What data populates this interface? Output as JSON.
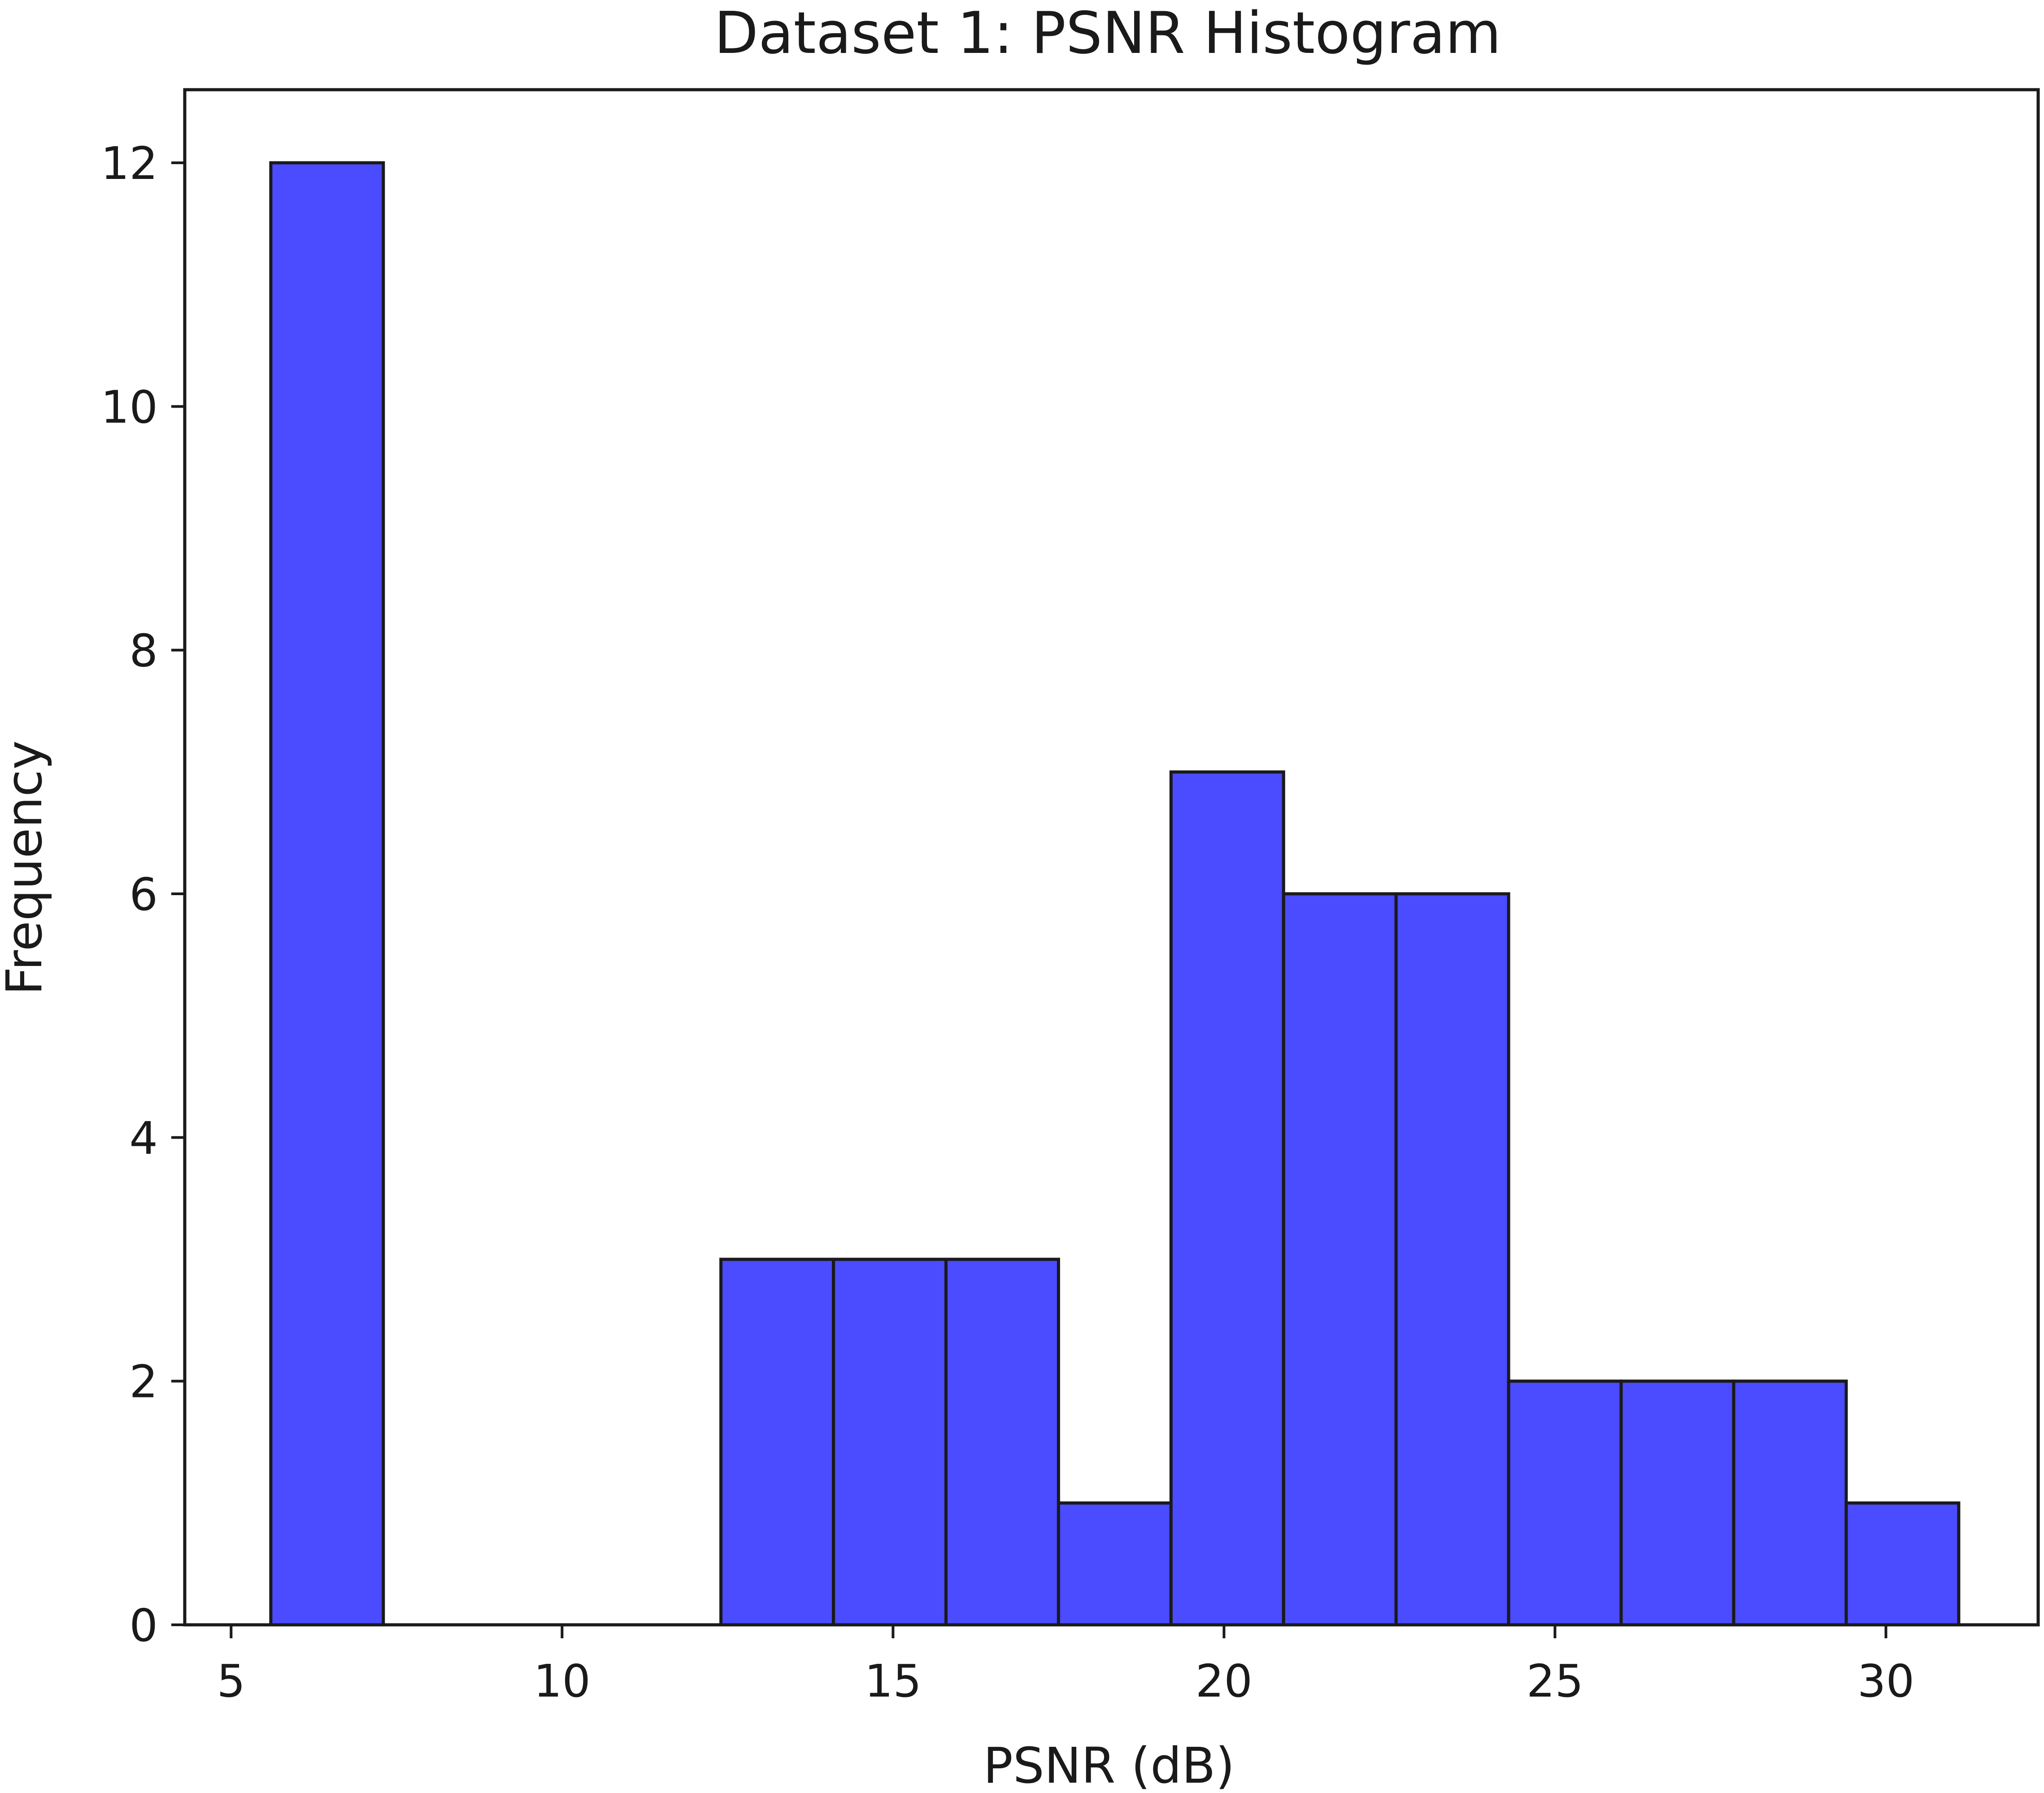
{
  "chart_data": {
    "type": "bar",
    "title": "Dataset 1: PSNR Histogram",
    "xlabel": "PSNR (dB)",
    "ylabel": "Frequency",
    "xlim": [
      4.3,
      32.3
    ],
    "ylim": [
      0,
      12.6
    ],
    "xticks": [
      5,
      10,
      15,
      20,
      25,
      30
    ],
    "yticks": [
      0,
      2,
      4,
      6,
      8,
      10,
      12
    ],
    "grid": false,
    "bar_color": "#4b4bff",
    "edge_color": "#1a1a1a",
    "bins": [
      {
        "x0": 5.6,
        "x1": 7.3,
        "count": 12
      },
      {
        "x0": 7.3,
        "x1": 9.0,
        "count": 0
      },
      {
        "x0": 9.0,
        "x1": 10.7,
        "count": 0
      },
      {
        "x0": 10.7,
        "x1": 12.4,
        "count": 0
      },
      {
        "x0": 12.4,
        "x1": 14.1,
        "count": 3
      },
      {
        "x0": 14.1,
        "x1": 15.8,
        "count": 3
      },
      {
        "x0": 15.8,
        "x1": 17.5,
        "count": 3
      },
      {
        "x0": 17.5,
        "x1": 19.2,
        "count": 1
      },
      {
        "x0": 19.2,
        "x1": 20.9,
        "count": 7
      },
      {
        "x0": 20.9,
        "x1": 22.6,
        "count": 6
      },
      {
        "x0": 22.6,
        "x1": 24.3,
        "count": 6
      },
      {
        "x0": 24.3,
        "x1": 26.0,
        "count": 2
      },
      {
        "x0": 26.0,
        "x1": 27.7,
        "count": 2
      },
      {
        "x0": 27.7,
        "x1": 29.4,
        "count": 2
      },
      {
        "x0": 29.4,
        "x1": 31.1,
        "count": 1
      }
    ]
  }
}
